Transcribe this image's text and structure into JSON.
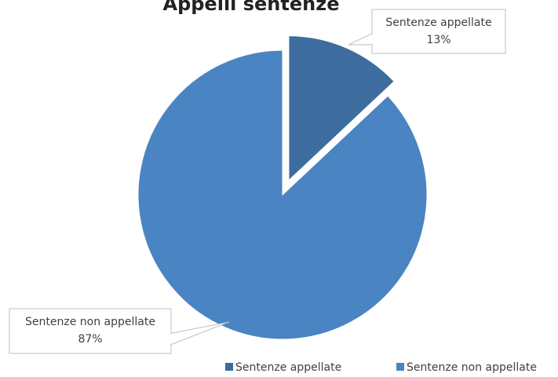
{
  "chart_data": {
    "type": "pie",
    "title": "Appelli sentenze",
    "categories": [
      "Sentenze appellate",
      "Sentenze non appellate"
    ],
    "values": [
      13,
      87
    ],
    "value_labels": [
      "13%",
      "87%"
    ],
    "colors": [
      "#3d6d9e",
      "#4a84c2"
    ],
    "legend": "bottom-right"
  }
}
